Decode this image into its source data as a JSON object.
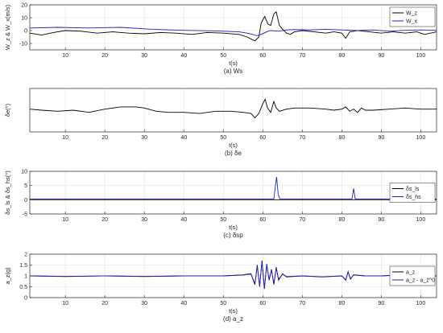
{
  "chart_data": [
    {
      "type": "line",
      "ylabel": "W_z & W_x(m/s)",
      "xlabel": "t(s)",
      "caption": "(a) Ws",
      "xlim": [
        1,
        104
      ],
      "ylim": [
        -15,
        20
      ],
      "xticks": [
        10,
        20,
        30,
        40,
        50,
        60,
        70,
        80,
        90,
        100
      ],
      "yticks": [
        -10,
        0,
        10,
        20
      ],
      "grid": true,
      "legend_position": "top-right",
      "series": [
        {
          "name": "W_z",
          "color": "#000000",
          "points": [
            [
              1,
              -2
            ],
            [
              4,
              -3.5
            ],
            [
              7,
              -1.5
            ],
            [
              10,
              0
            ],
            [
              14,
              -0.5
            ],
            [
              18,
              -2
            ],
            [
              22,
              -1
            ],
            [
              26,
              -2
            ],
            [
              30,
              -2.5
            ],
            [
              34,
              -1.5
            ],
            [
              38,
              -2
            ],
            [
              42,
              -3
            ],
            [
              46,
              -1.5
            ],
            [
              50,
              -2
            ],
            [
              54,
              -3
            ],
            [
              56,
              -5
            ],
            [
              58,
              -8
            ],
            [
              59,
              -5
            ],
            [
              59.6,
              6
            ],
            [
              60.5,
              11
            ],
            [
              61.3,
              5
            ],
            [
              62,
              4
            ],
            [
              62.8,
              13
            ],
            [
              63.4,
              14.5
            ],
            [
              64.2,
              4
            ],
            [
              65,
              1
            ],
            [
              66,
              -2
            ],
            [
              67,
              -3
            ],
            [
              68,
              -1
            ],
            [
              70,
              0
            ],
            [
              73,
              -1
            ],
            [
              76,
              -2
            ],
            [
              78,
              -1
            ],
            [
              80,
              -2
            ],
            [
              81,
              -6
            ],
            [
              82,
              -1
            ],
            [
              84,
              0
            ],
            [
              87,
              -1
            ],
            [
              90,
              -2
            ],
            [
              93,
              -1
            ],
            [
              96,
              -2
            ],
            [
              99,
              -1
            ],
            [
              101,
              -3
            ],
            [
              104,
              -1
            ]
          ]
        },
        {
          "name": "W_x",
          "color": "#1f1fcc",
          "points": [
            [
              1,
              2
            ],
            [
              8,
              2.5
            ],
            [
              16,
              2
            ],
            [
              24,
              2.5
            ],
            [
              32,
              1
            ],
            [
              40,
              0.2
            ],
            [
              48,
              -0.3
            ],
            [
              54,
              -1
            ],
            [
              56,
              -2
            ],
            [
              57.5,
              -3
            ],
            [
              58.5,
              -4
            ],
            [
              59.5,
              -3
            ],
            [
              61,
              -1
            ],
            [
              62,
              0
            ],
            [
              64,
              -0.5
            ],
            [
              66,
              0.5
            ],
            [
              68,
              0.8
            ],
            [
              72,
              0.5
            ],
            [
              76,
              1
            ],
            [
              80,
              0.5
            ],
            [
              84,
              0
            ],
            [
              88,
              0.5
            ],
            [
              92,
              -0.5
            ],
            [
              96,
              0.2
            ],
            [
              100,
              0.5
            ],
            [
              104,
              0.2
            ]
          ]
        }
      ]
    },
    {
      "type": "line",
      "ylabel": "δe(°)",
      "xlabel": "t(s)",
      "caption": "(b) δe",
      "xlim": [
        1,
        104
      ],
      "ylim": [
        -10,
        10
      ],
      "xticks": [
        10,
        20,
        30,
        40,
        50,
        60,
        70,
        80,
        90,
        100
      ],
      "yticks": [],
      "grid": true,
      "series": [
        {
          "name": "",
          "color": "#000000",
          "points": [
            [
              1,
              0.5
            ],
            [
              4,
              0
            ],
            [
              8,
              -0.5
            ],
            [
              12,
              0
            ],
            [
              16,
              -1
            ],
            [
              20,
              0.5
            ],
            [
              24,
              1.5
            ],
            [
              28,
              1.5
            ],
            [
              30,
              1
            ],
            [
              33,
              -0.5
            ],
            [
              36,
              -1
            ],
            [
              40,
              -1
            ],
            [
              44,
              -1.5
            ],
            [
              48,
              -0.5
            ],
            [
              52,
              -0.5
            ],
            [
              55,
              -1
            ],
            [
              57,
              -1.5
            ],
            [
              58,
              -3.5
            ],
            [
              59,
              -1.5
            ],
            [
              60,
              3
            ],
            [
              60.6,
              5
            ],
            [
              61.2,
              1
            ],
            [
              62,
              -1
            ],
            [
              62.8,
              4
            ],
            [
              63.4,
              1
            ],
            [
              64.2,
              -0.5
            ],
            [
              66,
              0.5
            ],
            [
              68,
              1
            ],
            [
              72,
              1
            ],
            [
              76,
              0.5
            ],
            [
              78,
              0
            ],
            [
              80,
              0.5
            ],
            [
              81,
              1.5
            ],
            [
              82,
              -0.5
            ],
            [
              83,
              0.5
            ],
            [
              84,
              -1
            ],
            [
              85,
              1
            ],
            [
              86,
              0
            ],
            [
              88,
              0
            ],
            [
              92,
              0.5
            ],
            [
              96,
              1
            ],
            [
              100,
              0.5
            ],
            [
              104,
              0.5
            ]
          ]
        }
      ]
    },
    {
      "type": "line",
      "ylabel": "δs_ls & δs_hs(°)",
      "xlabel": "t(s)",
      "caption": "(c) δsp",
      "xlim": [
        1,
        104
      ],
      "ylim": [
        -5,
        10
      ],
      "xticks": [
        10,
        20,
        30,
        40,
        50,
        60,
        70,
        80,
        90,
        100
      ],
      "yticks": [
        -5,
        0,
        5,
        10
      ],
      "grid": true,
      "legend_position": "right",
      "series": [
        {
          "name": "δs_ls",
          "color": "#000000",
          "points": [
            [
              1,
              0
            ],
            [
              62,
              0
            ],
            [
              62.5,
              0
            ],
            [
              104,
              0
            ]
          ]
        },
        {
          "name": "δs_hs",
          "color": "#1f1fcc",
          "points": [
            [
              1,
              0.3
            ],
            [
              62.8,
              0.3
            ],
            [
              63.2,
              5
            ],
            [
              63.5,
              8
            ],
            [
              63.9,
              2
            ],
            [
              64.3,
              0.3
            ],
            [
              82.6,
              0.3
            ],
            [
              83,
              4
            ],
            [
              83.4,
              0.3
            ],
            [
              104,
              0.3
            ]
          ]
        }
      ]
    },
    {
      "type": "line",
      "ylabel": "a_z(g)",
      "xlabel": "t(s)",
      "caption": "(d) a_z",
      "xlim": [
        1,
        104
      ],
      "ylim": [
        0,
        2
      ],
      "xticks": [
        10,
        20,
        30,
        40,
        50,
        60,
        70,
        80,
        90,
        100
      ],
      "yticks": [
        0,
        0.5,
        1,
        1.5,
        2
      ],
      "grid": true,
      "legend_position": "right",
      "series": [
        {
          "name": "a_z",
          "color": "#000000",
          "points": [
            [
              1,
              1
            ],
            [
              10,
              0.97
            ],
            [
              20,
              1
            ],
            [
              30,
              0.97
            ],
            [
              40,
              1
            ],
            [
              50,
              1
            ],
            [
              55,
              1.05
            ],
            [
              57,
              1.1
            ],
            [
              58,
              0.6
            ],
            [
              58.6,
              1.5
            ],
            [
              59.2,
              0.5
            ],
            [
              59.8,
              1.7
            ],
            [
              60.4,
              0.4
            ],
            [
              61,
              1.55
            ],
            [
              61.6,
              0.8
            ],
            [
              62.2,
              1.3
            ],
            [
              62.8,
              0.6
            ],
            [
              63.4,
              1.4
            ],
            [
              64,
              0.8
            ],
            [
              65,
              1.1
            ],
            [
              66,
              0.95
            ],
            [
              70,
              1
            ],
            [
              75,
              0.95
            ],
            [
              80,
              1
            ],
            [
              81,
              0.8
            ],
            [
              81.6,
              1.2
            ],
            [
              82.2,
              0.85
            ],
            [
              83,
              1.05
            ],
            [
              86,
              1
            ],
            [
              90,
              1
            ],
            [
              95,
              1.05
            ],
            [
              100,
              1
            ],
            [
              104,
              1
            ]
          ]
        },
        {
          "name": "a_z - a_z^0",
          "color": "#1f1fcc",
          "points": [
            [
              1,
              1
            ],
            [
              10,
              0.98
            ],
            [
              20,
              1
            ],
            [
              30,
              0.98
            ],
            [
              40,
              1
            ],
            [
              50,
              1
            ],
            [
              55,
              1.04
            ],
            [
              57,
              1.08
            ],
            [
              58,
              0.65
            ],
            [
              58.6,
              1.45
            ],
            [
              59.2,
              0.55
            ],
            [
              59.8,
              1.65
            ],
            [
              60.4,
              0.45
            ],
            [
              61,
              1.5
            ],
            [
              61.6,
              0.85
            ],
            [
              62.2,
              1.25
            ],
            [
              62.8,
              0.65
            ],
            [
              63.4,
              1.35
            ],
            [
              64,
              0.85
            ],
            [
              65,
              1.08
            ],
            [
              66,
              0.97
            ],
            [
              70,
              1
            ],
            [
              75,
              0.96
            ],
            [
              80,
              1
            ],
            [
              81,
              0.82
            ],
            [
              81.6,
              1.18
            ],
            [
              82.2,
              0.88
            ],
            [
              83,
              1.04
            ],
            [
              86,
              1
            ],
            [
              90,
              1
            ],
            [
              95,
              1.04
            ],
            [
              100,
              1
            ],
            [
              104,
              1
            ]
          ]
        }
      ]
    }
  ]
}
